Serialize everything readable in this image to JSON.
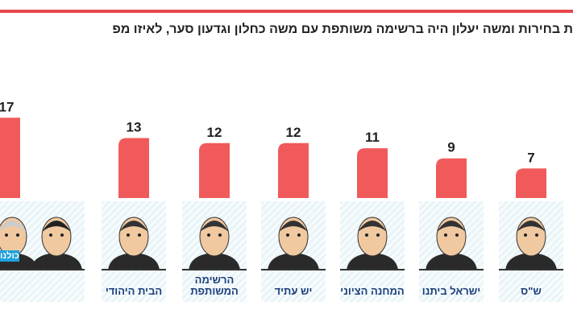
{
  "title": "ת בחירות ומשה יעלון היה ברשימה משותפת עם משה כחלון וגדעון סער, לאיזו מפ",
  "colors": {
    "bar": "#f05a5b",
    "accent_line": "#e8474c",
    "label": "#222222"
  },
  "chart_data": {
    "type": "bar",
    "categories": [
      "כולנו",
      "הבית היהודי",
      "הרשימה המשותפת",
      "יש עתיד",
      "המחנה הציוני",
      "ישראל ביתנו",
      "ש\"ס"
    ],
    "values": [
      17,
      13,
      12,
      12,
      11,
      9,
      7
    ],
    "data_labels": [
      "17",
      "13",
      "12",
      "12",
      "11",
      "9",
      "7"
    ],
    "title": "",
    "xlabel": "",
    "ylabel": "",
    "grid": false
  }
}
